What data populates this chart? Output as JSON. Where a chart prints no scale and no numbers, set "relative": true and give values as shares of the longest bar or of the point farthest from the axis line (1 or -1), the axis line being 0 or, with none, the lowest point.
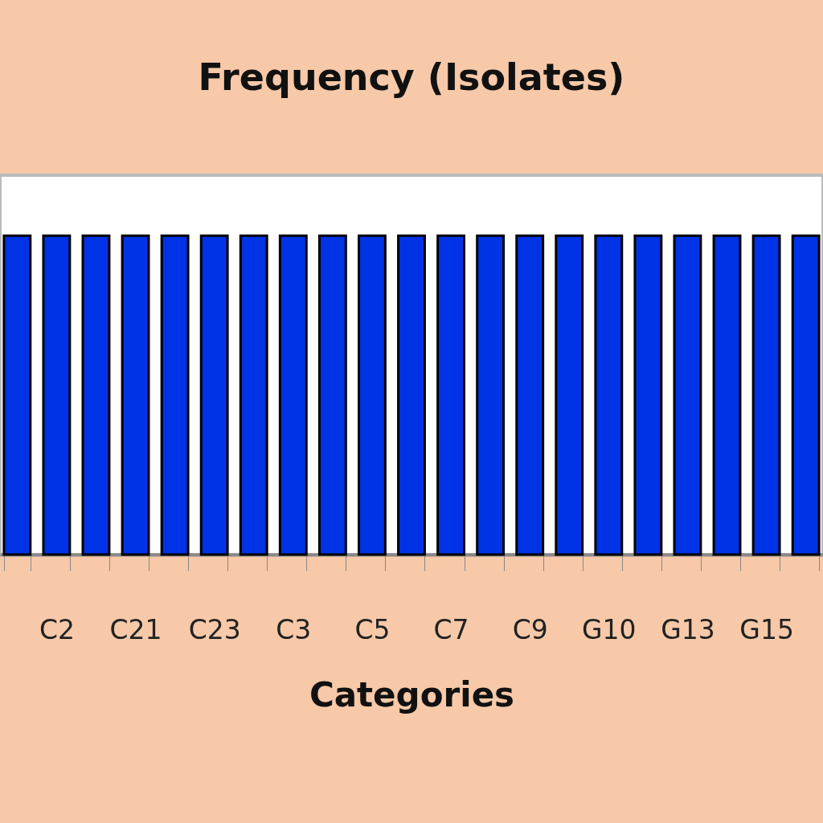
{
  "chart_data": {
    "type": "bar",
    "title": "Frequency (Isolates)",
    "xlabel": "Categories",
    "relative": true,
    "categories": [
      null,
      "C2",
      null,
      "C21",
      null,
      "C23",
      null,
      "C3",
      null,
      "C5",
      null,
      "C7",
      null,
      "C9",
      null,
      "G10",
      null,
      "G13",
      null,
      "G15",
      null
    ],
    "values": [
      1,
      1,
      1,
      1,
      1,
      1,
      1,
      1,
      1,
      1,
      1,
      1,
      1,
      1,
      1,
      1,
      1,
      1,
      1,
      1,
      1
    ],
    "color": "#0033e6",
    "grid": false
  }
}
